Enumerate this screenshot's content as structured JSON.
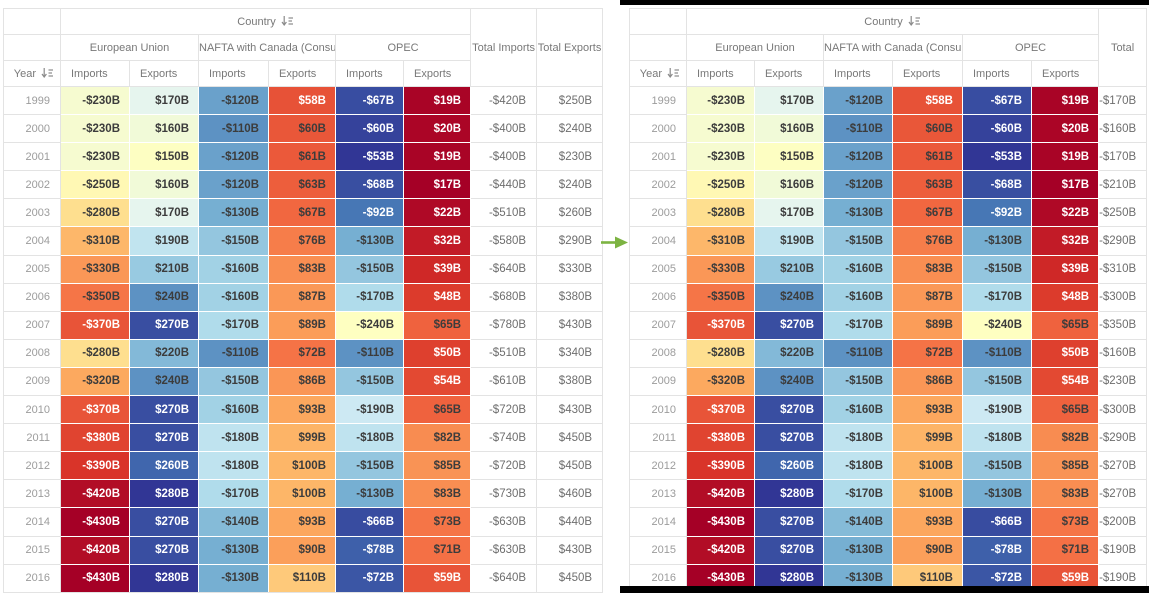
{
  "header": {
    "country": "Country",
    "year": "Year"
  },
  "groups": [
    {
      "label": "European Union"
    },
    {
      "label": "NAFTA with Canada (Consump)"
    },
    {
      "label": "OPEC"
    }
  ],
  "measures": [
    "Imports",
    "Exports"
  ],
  "tables": {
    "left": {
      "total_columns": [
        "Total Imports",
        "Total Exports"
      ],
      "total_keys": [
        "total_imports",
        "total_exports"
      ]
    },
    "right": {
      "total_columns": [
        "Total"
      ],
      "total_keys": [
        "total"
      ]
    }
  },
  "rows": [
    {
      "year": "1999",
      "values": [
        -230,
        170,
        -120,
        58,
        -67,
        19
      ],
      "total_imports": -420,
      "total_exports": 250,
      "total": -170
    },
    {
      "year": "2000",
      "values": [
        -230,
        160,
        -110,
        60,
        -60,
        20
      ],
      "total_imports": -400,
      "total_exports": 240,
      "total": -160
    },
    {
      "year": "2001",
      "values": [
        -230,
        150,
        -120,
        61,
        -53,
        19
      ],
      "total_imports": -400,
      "total_exports": 230,
      "total": -170
    },
    {
      "year": "2002",
      "values": [
        -250,
        160,
        -120,
        63,
        -68,
        17
      ],
      "total_imports": -440,
      "total_exports": 240,
      "total": -210
    },
    {
      "year": "2003",
      "values": [
        -280,
        170,
        -130,
        67,
        -92,
        22
      ],
      "total_imports": -510,
      "total_exports": 260,
      "total": -250
    },
    {
      "year": "2004",
      "values": [
        -310,
        190,
        -150,
        76,
        -130,
        32
      ],
      "total_imports": -580,
      "total_exports": 290,
      "total": -290
    },
    {
      "year": "2005",
      "values": [
        -330,
        210,
        -160,
        83,
        -150,
        39
      ],
      "total_imports": -640,
      "total_exports": 330,
      "total": -310
    },
    {
      "year": "2006",
      "values": [
        -350,
        240,
        -160,
        87,
        -170,
        48
      ],
      "total_imports": -680,
      "total_exports": 380,
      "total": -300
    },
    {
      "year": "2007",
      "values": [
        -370,
        270,
        -170,
        89,
        -240,
        65
      ],
      "total_imports": -780,
      "total_exports": 430,
      "total": -350
    },
    {
      "year": "2008",
      "values": [
        -280,
        220,
        -110,
        72,
        -110,
        50
      ],
      "total_imports": -510,
      "total_exports": 340,
      "total": -160
    },
    {
      "year": "2009",
      "values": [
        -320,
        240,
        -150,
        86,
        -150,
        54
      ],
      "total_imports": -610,
      "total_exports": 380,
      "total": -230
    },
    {
      "year": "2010",
      "values": [
        -370,
        270,
        -160,
        93,
        -190,
        65
      ],
      "total_imports": -720,
      "total_exports": 430,
      "total": -300
    },
    {
      "year": "2011",
      "values": [
        -380,
        270,
        -180,
        99,
        -180,
        82
      ],
      "total_imports": -740,
      "total_exports": 450,
      "total": -290
    },
    {
      "year": "2012",
      "values": [
        -390,
        260,
        -180,
        100,
        -150,
        85
      ],
      "total_imports": -720,
      "total_exports": 450,
      "total": -270
    },
    {
      "year": "2013",
      "values": [
        -420,
        280,
        -170,
        100,
        -130,
        83
      ],
      "total_imports": -730,
      "total_exports": 460,
      "total": -270
    },
    {
      "year": "2014",
      "values": [
        -430,
        270,
        -140,
        93,
        -66,
        73
      ],
      "total_imports": -630,
      "total_exports": 440,
      "total": -200
    },
    {
      "year": "2015",
      "values": [
        -420,
        270,
        -130,
        90,
        -78,
        71
      ],
      "total_imports": -630,
      "total_exports": 430,
      "total": -190
    },
    {
      "year": "2016",
      "values": [
        -430,
        280,
        -130,
        110,
        -72,
        59
      ],
      "total_imports": -640,
      "total_exports": 450,
      "total": -190
    }
  ],
  "value_format": {
    "prefix": "$",
    "suffix": "B"
  },
  "heatmap": {
    "palette_rdylbu": [
      "#a50026",
      "#d73027",
      "#f46d43",
      "#fdae61",
      "#fee090",
      "#ffffbf",
      "#e0f3f8",
      "#abd9e9",
      "#74add1",
      "#4575b4",
      "#313695"
    ],
    "scales": {
      "imports": [
        -430,
        -53
      ],
      "exports": [
        17,
        280
      ]
    },
    "white_text_luminance_threshold": 0.45,
    "dark_text_color": "#3c3c3c",
    "light_text_color": "#ffffff"
  },
  "icons": {
    "sort": "sort-icon",
    "arrow": "arrow-right-icon"
  },
  "colors": {
    "arrow_green": "#7cb342",
    "selection_border_black": "#000000",
    "grid_border": "#e3e3e3",
    "header_text": "#787878",
    "year_text": "#9c9c9c",
    "total_text": "#6e6e6e"
  }
}
